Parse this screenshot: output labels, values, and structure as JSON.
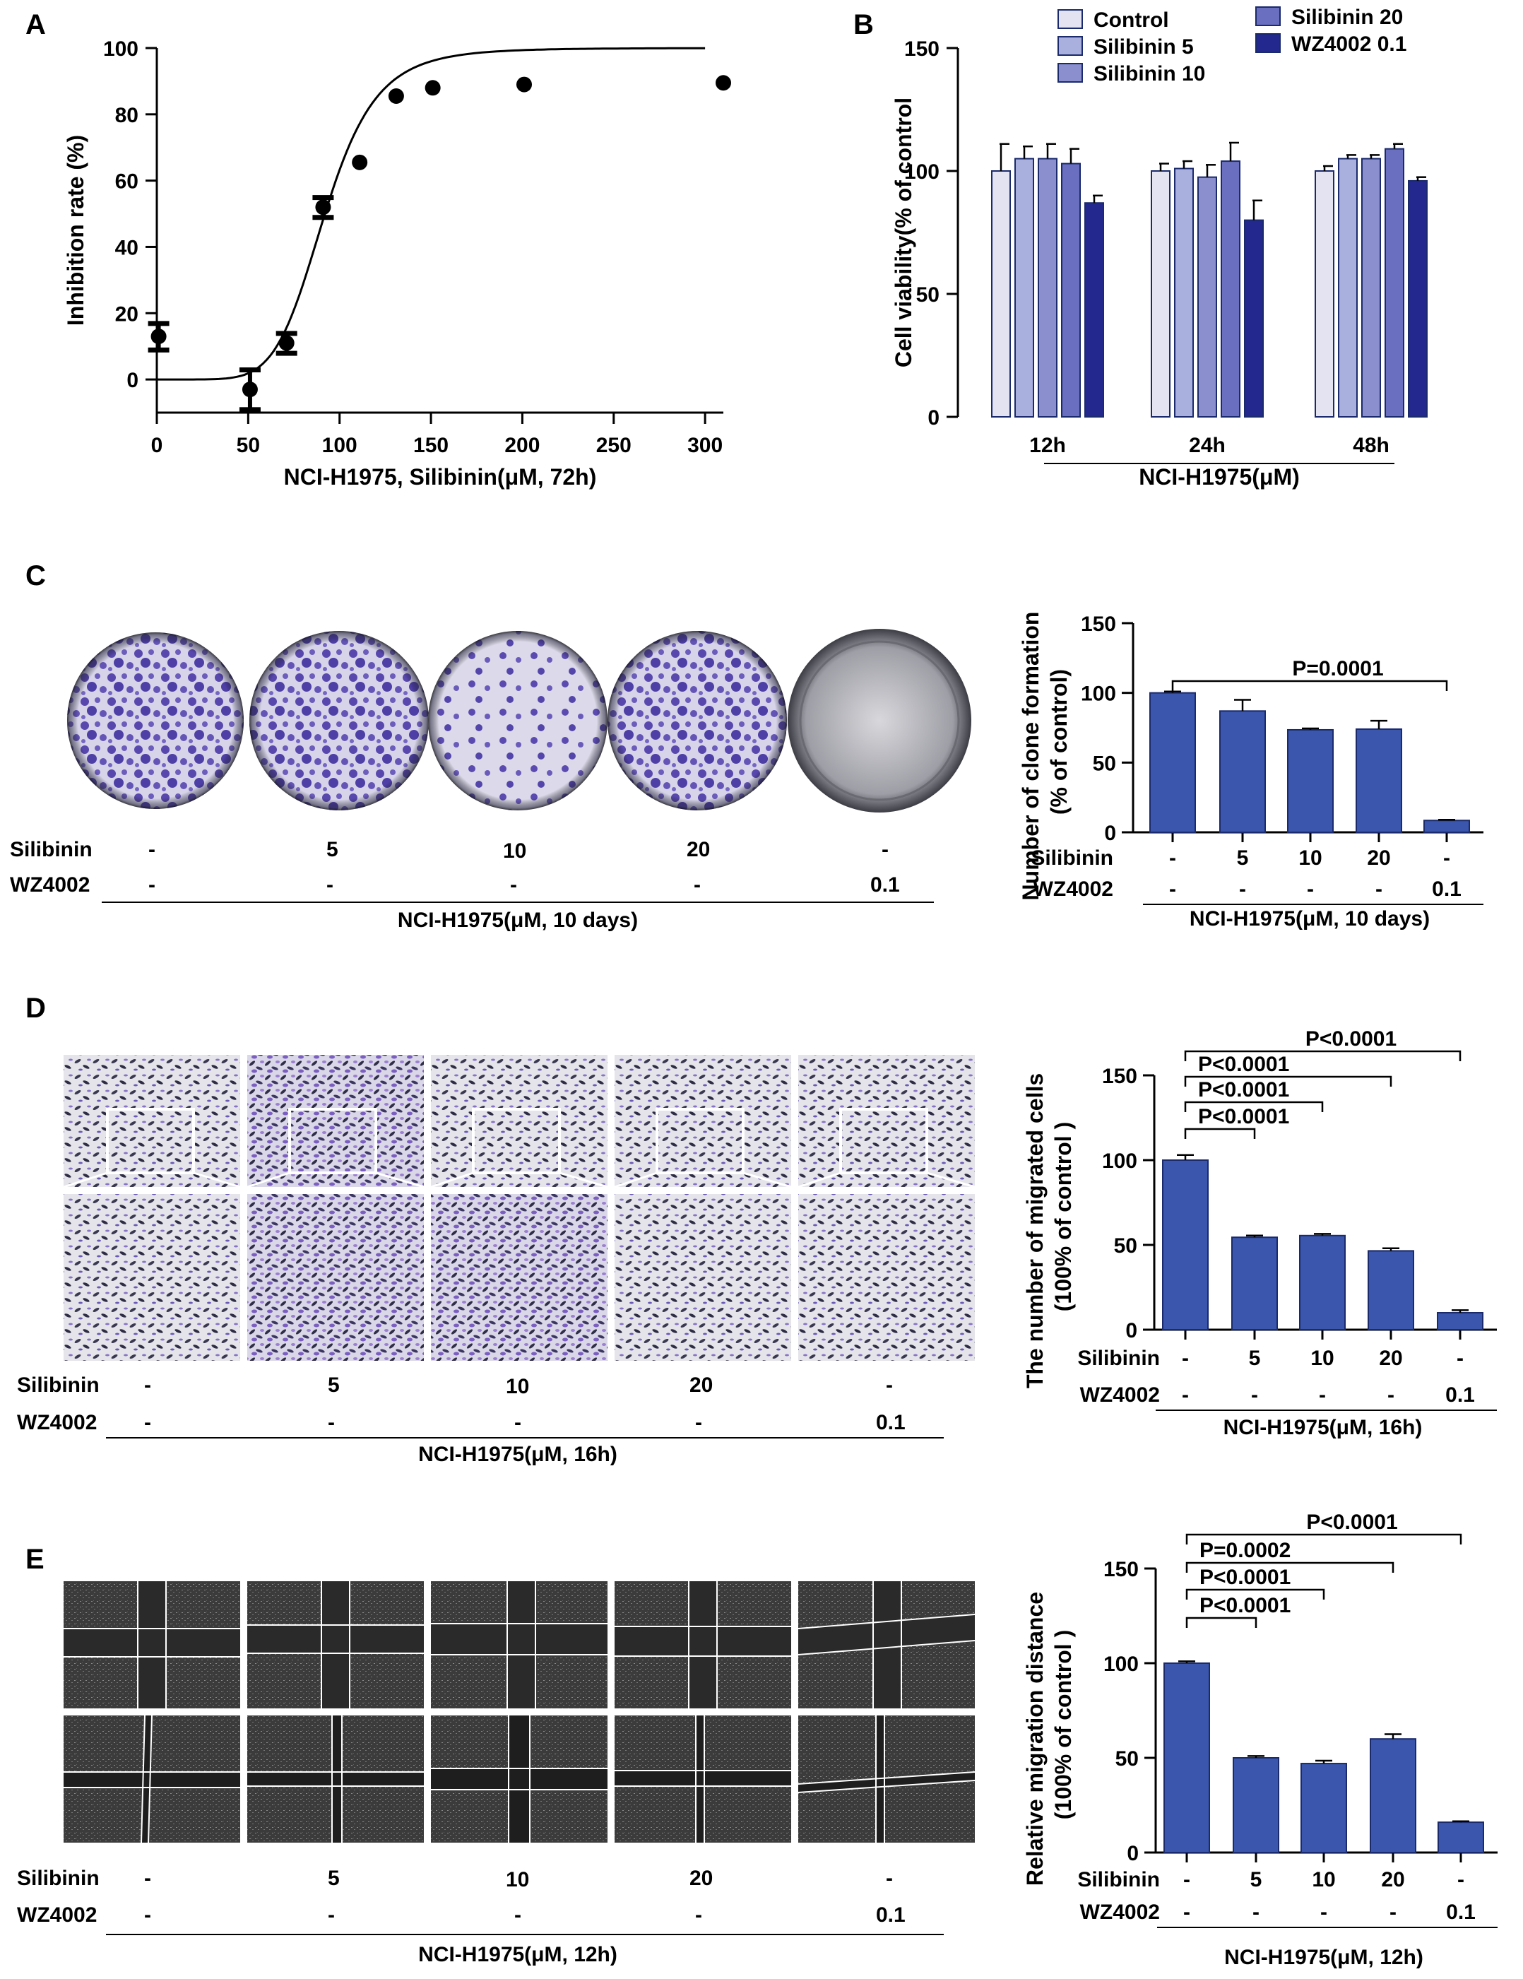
{
  "colors": {
    "bar_blue": "#3a57ad",
    "bar_edge": "#1a2a6c",
    "legend": [
      "#e3e3f2",
      "#aab0de",
      "#8b8fce",
      "#6a6fbf",
      "#23288f"
    ],
    "dish_stain": "#5b4fb0",
    "wound_bg": "#3a3a3a"
  },
  "panels": {
    "A": "A",
    "B": "B",
    "C": "C",
    "D": "D",
    "E": "E"
  },
  "chart_data": [
    {
      "panel": "A",
      "type": "scatter",
      "xlabel": "NCI-H1975, Silibinin(μM, 72h)",
      "ylabel": "Inhibition rate (%)",
      "xlim": [
        0,
        310
      ],
      "ylim": [
        -10,
        100
      ],
      "xticks": [
        0,
        50,
        100,
        150,
        200,
        250,
        300
      ],
      "yticks": [
        0,
        20,
        40,
        60,
        80,
        100
      ],
      "points": [
        {
          "x": 1,
          "y": 13,
          "err": 4
        },
        {
          "x": 51,
          "y": -3,
          "err": 6
        },
        {
          "x": 71,
          "y": 11,
          "err": 3
        },
        {
          "x": 91,
          "y": 52,
          "err": 3
        },
        {
          "x": 111,
          "y": 65.5,
          "err": 0
        },
        {
          "x": 131,
          "y": 85.5,
          "err": 0
        },
        {
          "x": 151,
          "y": 88,
          "err": 0
        },
        {
          "x": 201,
          "y": 89,
          "err": 0
        },
        {
          "x": 310,
          "y": 89.5,
          "err": 0
        }
      ],
      "fit": {
        "bottom": 0,
        "top": 100,
        "ec50": 92,
        "hill": 6.5
      },
      "error_bars": true
    },
    {
      "panel": "B",
      "type": "bar",
      "ylabel": "Cell viability(% of control",
      "xlabel": "NCI-H1975(μM)",
      "categories": [
        "12h",
        "24h",
        "48h"
      ],
      "ylim": [
        0,
        150
      ],
      "yticks": [
        0,
        50,
        100,
        150
      ],
      "series": [
        {
          "name": "Control",
          "values": [
            100,
            100,
            100
          ],
          "errors": [
            11,
            3,
            2
          ]
        },
        {
          "name": "Silibinin 5",
          "values": [
            105,
            101,
            105
          ],
          "errors": [
            5,
            3,
            1.5
          ]
        },
        {
          "name": "Silibinin 10",
          "values": [
            105,
            97.5,
            105
          ],
          "errors": [
            6,
            5,
            1.5
          ]
        },
        {
          "name": "Silibinin 20",
          "values": [
            103,
            104,
            109
          ],
          "errors": [
            6,
            7.5,
            2
          ]
        },
        {
          "name": "WZ4002 0.1",
          "values": [
            87,
            80,
            96
          ],
          "errors": [
            3,
            8,
            1.5
          ]
        }
      ],
      "legend_position": "top"
    },
    {
      "panel": "C",
      "type": "bar",
      "ylabel_line1": "Number of clone formation",
      "ylabel_line2": "(% of control)",
      "xlabel": "NCI-H1975(μM, 10 days)",
      "ylim": [
        0,
        150
      ],
      "yticks": [
        0,
        50,
        100,
        150
      ],
      "values": [
        100,
        87,
        73.5,
        74,
        8.5
      ],
      "errors": [
        1,
        8,
        1,
        6,
        0.5
      ],
      "row1_label": "Silibinin",
      "row1": [
        "-",
        "5",
        "10",
        "20",
        "-"
      ],
      "row2_label": "WZ4002",
      "row2": [
        "-",
        "-",
        "-",
        "-",
        "0.1"
      ],
      "comparisons": [
        {
          "from": 0,
          "to": 4,
          "label": "P=0.0001"
        }
      ]
    },
    {
      "panel": "D",
      "type": "bar",
      "ylabel_line1": "The number of migrated cells",
      "ylabel_line2": "(100% of control )",
      "xlabel": "NCI-H1975(μM, 16h)",
      "ylim": [
        0,
        150
      ],
      "yticks": [
        0,
        50,
        100,
        150
      ],
      "values": [
        100,
        54.5,
        55.5,
        46.5,
        10
      ],
      "errors": [
        3,
        1,
        1,
        1.5,
        1.5
      ],
      "row1_label": "Silibinin",
      "row1": [
        "-",
        "5",
        "10",
        "20",
        "-"
      ],
      "row2_label": "WZ4002",
      "row2": [
        "-",
        "-",
        "-",
        "-",
        "0.1"
      ],
      "comparisons": [
        {
          "from": 0,
          "to": 1,
          "label": "P<0.0001"
        },
        {
          "from": 0,
          "to": 2,
          "label": "P<0.0001"
        },
        {
          "from": 0,
          "to": 3,
          "label": "P<0.0001"
        },
        {
          "from": 0,
          "to": 4,
          "label": "P<0.0001"
        }
      ]
    },
    {
      "panel": "E",
      "type": "bar",
      "ylabel_line1": "Relative migration distance",
      "ylabel_line2": "(100% of control )",
      "xlabel": "NCI-H1975(μM, 12h)",
      "ylim": [
        0,
        150
      ],
      "yticks": [
        0,
        50,
        100,
        150
      ],
      "values": [
        100,
        50,
        47,
        60,
        16
      ],
      "errors": [
        1,
        1,
        1.5,
        2.5,
        0.5
      ],
      "row1_label": "Silibinin",
      "row1": [
        "-",
        "5",
        "10",
        "20",
        "-"
      ],
      "row2_label": "WZ4002",
      "row2": [
        "-",
        "-",
        "-",
        "-",
        "0.1"
      ],
      "comparisons": [
        {
          "from": 0,
          "to": 1,
          "label": "P<0.0001"
        },
        {
          "from": 0,
          "to": 2,
          "label": "P<0.0001"
        },
        {
          "from": 0,
          "to": 3,
          "label": "P=0.0002"
        },
        {
          "from": 0,
          "to": 4,
          "label": "P<0.0001"
        }
      ]
    }
  ],
  "image_rows": {
    "C": {
      "row1_label": "Silibinin",
      "row1": [
        "-",
        "5",
        "10",
        "20",
        "-"
      ],
      "row2_label": "WZ4002",
      "row2": [
        "-",
        "-",
        "-",
        "-",
        "0.1"
      ],
      "caption": "NCI-H1975(μM, 10 days)"
    },
    "D": {
      "row1_label": "Silibinin",
      "row1": [
        "-",
        "5",
        "10",
        "20",
        "-"
      ],
      "row2_label": "WZ4002",
      "row2": [
        "-",
        "-",
        "-",
        "-",
        "0.1"
      ],
      "caption": "NCI-H1975(μM, 16h)"
    },
    "E": {
      "row1_label": "Silibinin",
      "row1": [
        "-",
        "5",
        "10",
        "20",
        "-"
      ],
      "row2_label": "WZ4002",
      "row2": [
        "-",
        "-",
        "-",
        "-",
        "0.1"
      ],
      "caption": "NCI-H1975(μM, 12h)"
    }
  }
}
